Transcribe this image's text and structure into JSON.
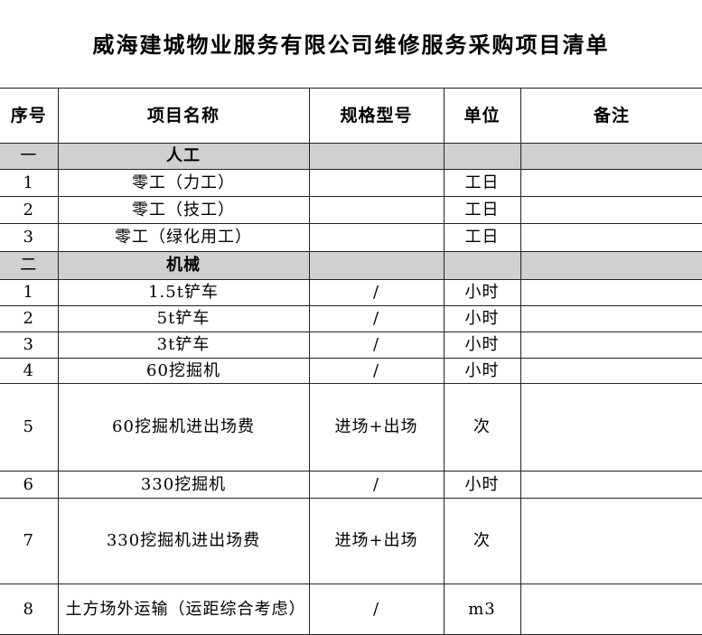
{
  "title": "威海建城物业服务有限公司维修服务采购项目清单",
  "headers": [
    "序号",
    "项目名称",
    "规格型号",
    "单位",
    "备注"
  ],
  "rows": [
    {
      "type": "category",
      "no": "一",
      "name": "人工",
      "spec": "",
      "unit": "",
      "note": ""
    },
    {
      "type": "item",
      "no": "1",
      "name": "零工（力工）",
      "spec": "",
      "unit": "工日",
      "note": ""
    },
    {
      "type": "item",
      "no": "2",
      "name": "零工（技工）",
      "spec": "",
      "unit": "工日",
      "note": ""
    },
    {
      "type": "item",
      "no": "3",
      "name": "零工（绿化用工）",
      "spec": "",
      "unit": "工日",
      "note": ""
    },
    {
      "type": "category",
      "no": "二",
      "name": "机械",
      "spec": "",
      "unit": "",
      "note": ""
    },
    {
      "type": "item",
      "no": "1",
      "name": "1.5t铲车",
      "spec": "/",
      "unit": "小时",
      "note": ""
    },
    {
      "type": "item",
      "no": "2",
      "name": "5t铲车",
      "spec": "/",
      "unit": "小时",
      "note": ""
    },
    {
      "type": "item",
      "no": "3",
      "name": "3t铲车",
      "spec": "/",
      "unit": "小时",
      "note": ""
    },
    {
      "type": "item",
      "no": "4",
      "name": "60挖掘机",
      "spec": "/",
      "unit": "小时",
      "note": ""
    },
    {
      "type": "item",
      "no": "5",
      "name": "60挖掘机进出场费",
      "spec": "进场+出场",
      "unit": "次",
      "note": ""
    },
    {
      "type": "item",
      "no": "6",
      "name": "330挖掘机",
      "spec": "/",
      "unit": "小时",
      "note": ""
    },
    {
      "type": "item",
      "no": "7",
      "name": "330挖掘机进出场费",
      "spec": "进场+出场",
      "unit": "次",
      "note": ""
    },
    {
      "type": "item",
      "no": "8",
      "name": "土方场外运输（运距综合考虑）",
      "spec": "/",
      "unit": "m3",
      "note": ""
    }
  ]
}
